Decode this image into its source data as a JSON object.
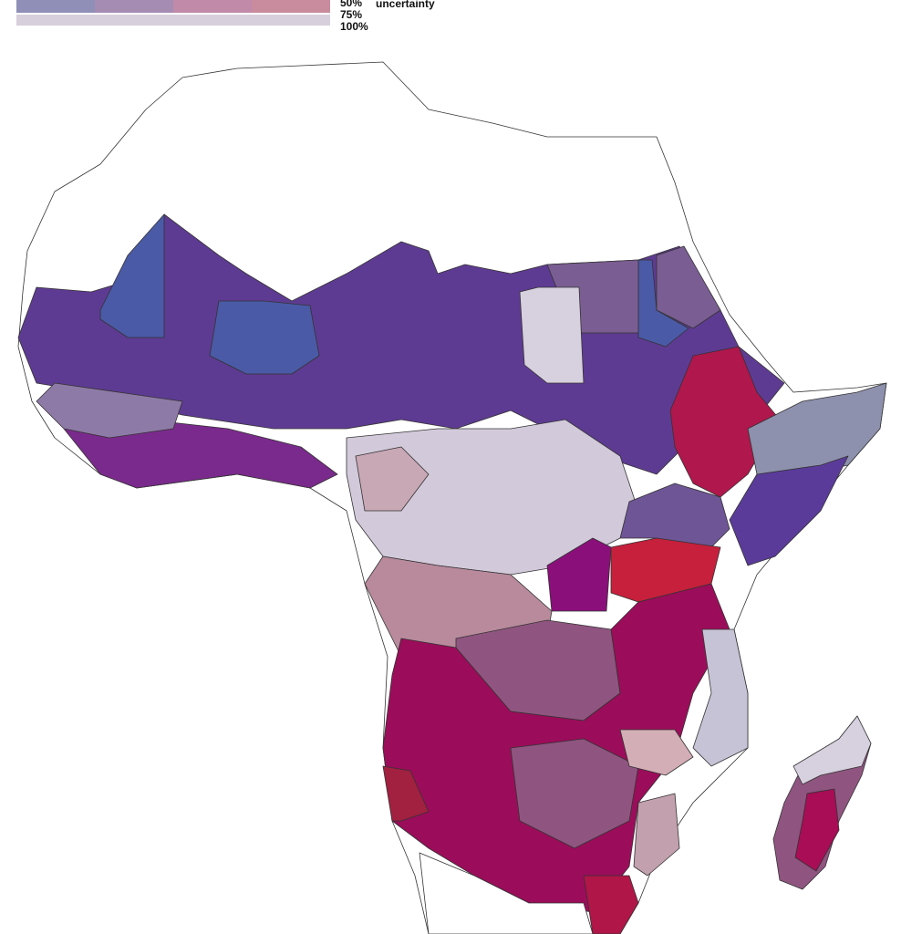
{
  "legend": {
    "levels": [
      "50%",
      "75%",
      "100%"
    ],
    "label": "uncertainty"
  }
}
